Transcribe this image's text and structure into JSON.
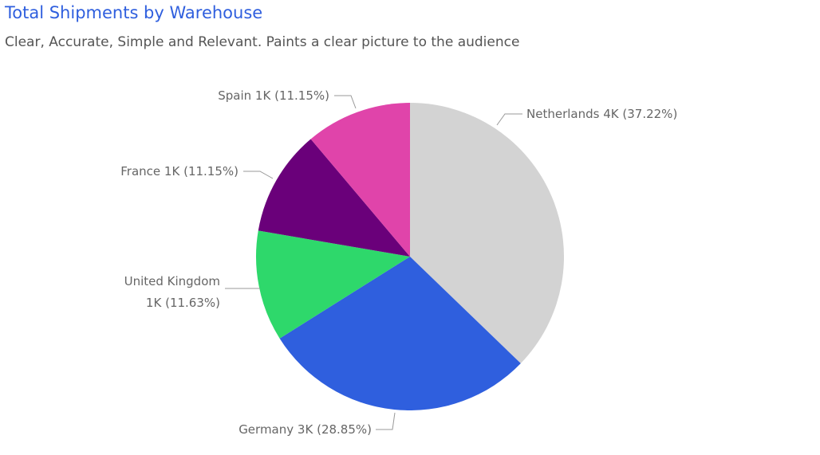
{
  "chart_data": {
    "type": "pie",
    "title": "Total Shipments by Warehouse",
    "subtitle": "Clear, Accurate, Simple and Relevant. Paints a clear picture to the audience",
    "categories": [
      "Netherlands",
      "Germany",
      "United Kingdom",
      "France",
      "Spain"
    ],
    "values": [
      37.22,
      28.85,
      11.63,
      11.15,
      11.15
    ],
    "count_labels": [
      "4K",
      "3K",
      "1K",
      "1K",
      "1K"
    ],
    "value_labels": [
      "(37.22%)",
      "(28.85%)",
      "(11.63%)",
      "(11.15%)",
      "(11.15%)"
    ],
    "colors": [
      "#d3d3d3",
      "#2f5fde",
      "#2ed86b",
      "#6a007a",
      "#e044aa"
    ]
  }
}
